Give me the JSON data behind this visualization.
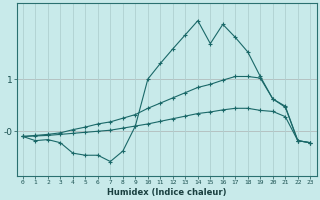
{
  "xlabel": "Humidex (Indice chaleur)",
  "bg_color": "#c8eaea",
  "line_color": "#1a6868",
  "grid_color": "#b0d0d0",
  "hline_color": "#d08080",
  "x": [
    0,
    1,
    2,
    3,
    4,
    5,
    6,
    7,
    8,
    9,
    10,
    11,
    12,
    13,
    14,
    15,
    16,
    17,
    18,
    19,
    20,
    21,
    22,
    23
  ],
  "y_main": [
    -0.1,
    -0.18,
    -0.16,
    -0.22,
    -0.42,
    -0.46,
    -0.46,
    -0.58,
    -0.38,
    0.1,
    1.0,
    1.3,
    1.58,
    1.85,
    2.12,
    1.68,
    2.05,
    1.8,
    1.52,
    1.05,
    0.62,
    0.48,
    -0.18,
    -0.22
  ],
  "y_upper": [
    -0.1,
    -0.08,
    -0.06,
    -0.03,
    0.03,
    0.08,
    0.14,
    0.18,
    0.25,
    0.32,
    0.44,
    0.54,
    0.64,
    0.74,
    0.84,
    0.9,
    0.98,
    1.05,
    1.05,
    1.02,
    0.62,
    0.46,
    -0.18,
    -0.22
  ],
  "y_lower": [
    -0.1,
    -0.09,
    -0.08,
    -0.06,
    -0.04,
    -0.02,
    0.0,
    0.02,
    0.06,
    0.1,
    0.14,
    0.19,
    0.24,
    0.29,
    0.34,
    0.37,
    0.41,
    0.44,
    0.44,
    0.4,
    0.38,
    0.28,
    -0.18,
    -0.22
  ],
  "ytick_vals": [
    0,
    1
  ],
  "ytick_labels": [
    "-0",
    "1"
  ],
  "ylim": [
    -0.85,
    2.45
  ],
  "xlim": [
    -0.5,
    23.5
  ],
  "xtick_fontsize": 4.5,
  "ytick_fontsize": 6.5
}
